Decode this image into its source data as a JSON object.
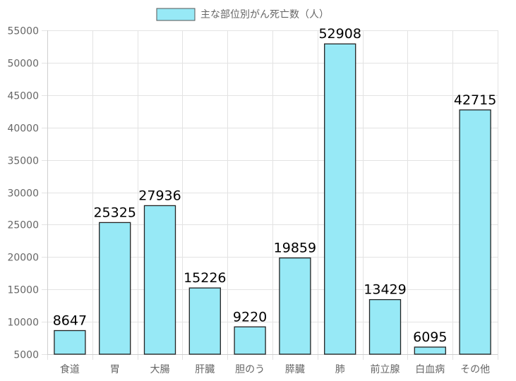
{
  "chart_data": {
    "type": "bar",
    "legend": {
      "label": "主な部位別がん死亡数（人）",
      "position": "top"
    },
    "categories": [
      "食道",
      "胃",
      "大腸",
      "肝臓",
      "胆のう",
      "膵臓",
      "肺",
      "前立腺",
      "白血病",
      "その他"
    ],
    "values": [
      8647,
      25325,
      27936,
      15226,
      9220,
      19859,
      52908,
      13429,
      6095,
      42715
    ],
    "ylim": [
      5000,
      55000
    ],
    "yticks": [
      5000,
      10000,
      15000,
      20000,
      25000,
      30000,
      35000,
      40000,
      45000,
      50000,
      55000
    ],
    "grid": true,
    "data_labels": true,
    "colors": {
      "bar_fill": "#97e9f6",
      "bar_stroke": "#222222",
      "grid": "#e3e3e3",
      "tick_text": "#666666"
    }
  }
}
